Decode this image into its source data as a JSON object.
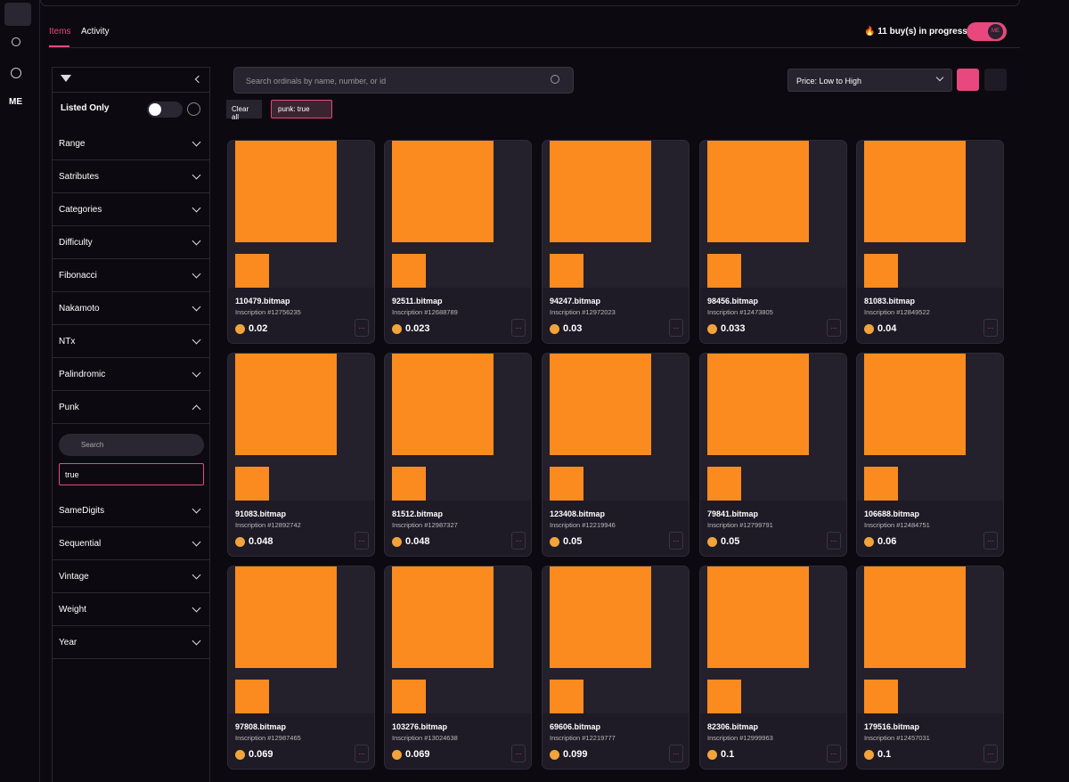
{
  "nav_logo": "ME",
  "tabs": [
    "Items",
    "Activity"
  ],
  "buy_status": "🔥 11 buy(s) in progress...",
  "toggle_badge": "ME",
  "filters": {
    "listed_only": "Listed Only",
    "sections": [
      "Range",
      "Satributes",
      "Categories",
      "Difficulty",
      "Fibonacci",
      "Nakamoto",
      "NTx",
      "Palindromic",
      "Punk",
      "SameDigits",
      "Sequential",
      "Vintage",
      "Weight",
      "Year"
    ],
    "punk_search_placeholder": "Search",
    "punk_value": "true"
  },
  "search_placeholder": "Search ordinals by name, number, or id",
  "sort": "Price: Low to High",
  "clear_all": "Clear all",
  "active_filter": "punk: true",
  "more_button": "...",
  "items": [
    {
      "name": "110479.bitmap",
      "inscription": "Inscription #12756235",
      "price": "0.02"
    },
    {
      "name": "92511.bitmap",
      "inscription": "Inscription #12688789",
      "price": "0.023"
    },
    {
      "name": "94247.bitmap",
      "inscription": "Inscription #12972023",
      "price": "0.03"
    },
    {
      "name": "98456.bitmap",
      "inscription": "Inscription #12473805",
      "price": "0.033"
    },
    {
      "name": "81083.bitmap",
      "inscription": "Inscription #12849522",
      "price": "0.04"
    },
    {
      "name": "91083.bitmap",
      "inscription": "Inscription #12892742",
      "price": "0.048"
    },
    {
      "name": "81512.bitmap",
      "inscription": "Inscription #12987327",
      "price": "0.048"
    },
    {
      "name": "123408.bitmap",
      "inscription": "Inscription #12219946",
      "price": "0.05"
    },
    {
      "name": "79841.bitmap",
      "inscription": "Inscription #12799791",
      "price": "0.05"
    },
    {
      "name": "106688.bitmap",
      "inscription": "Inscription #12484751",
      "price": "0.06"
    },
    {
      "name": "97808.bitmap",
      "inscription": "Inscription #12987465",
      "price": "0.069"
    },
    {
      "name": "103276.bitmap",
      "inscription": "Inscription #13024638",
      "price": "0.069"
    },
    {
      "name": "69606.bitmap",
      "inscription": "Inscription #12219777",
      "price": "0.099"
    },
    {
      "name": "82306.bitmap",
      "inscription": "Inscription #12999963",
      "price": "0.1"
    },
    {
      "name": "179516.bitmap",
      "inscription": "Inscription #12457031",
      "price": "0.1"
    }
  ]
}
